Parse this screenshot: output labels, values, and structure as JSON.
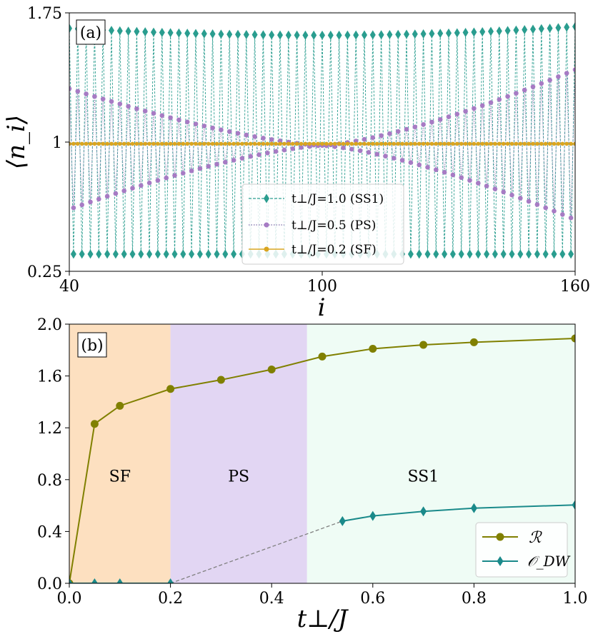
{
  "colors": {
    "ss1": "#2a9d8f",
    "ps": "#a77bc4",
    "sf": "#d9a520",
    "R": "#808000",
    "odw": "#1a8a8a",
    "dashed": "#808080",
    "region_sf": "#fde0c0",
    "region_ps": "#e2d6f3",
    "region_ss1": "#effcf5"
  },
  "chart_data": [
    {
      "id": "a",
      "type": "line",
      "panel_label": "(a)",
      "xlabel": "i",
      "ylabel": "⟨n_i⟩",
      "xlim": [
        40,
        160
      ],
      "ylim": [
        0.25,
        1.75
      ],
      "xticks": [
        40,
        100,
        160
      ],
      "xtick_labels": [
        "40",
        "100",
        "160"
      ],
      "yticks": [
        0.25,
        1,
        1.75
      ],
      "ytick_labels": [
        "0.25",
        "1",
        "1.75"
      ],
      "x_range": [
        40,
        160
      ],
      "legend_position": "lower-center",
      "series": [
        {
          "key": "ss1",
          "name": "t⊥/J=1.0 (SS1)",
          "marker": "diamond",
          "style": "dashed",
          "odd_values_start": 1.66,
          "odd_values_mid": 1.62,
          "odd_values_end": 1.67,
          "even_values": 0.35,
          "x_start": 40
        },
        {
          "key": "ps",
          "name": "t⊥/J=0.5 (PS)",
          "marker": "circle",
          "style": "dotted",
          "high_left_edge": 1.31,
          "high_right_edge": 1.42,
          "low_left_edge": 0.61,
          "low_right_edge": 0.55,
          "center_value": 0.98
        },
        {
          "key": "sf",
          "name": "t⊥/J=0.2 (SF)",
          "marker": "circle",
          "style": "solid",
          "constant": 0.99
        }
      ]
    },
    {
      "id": "b",
      "type": "line",
      "panel_label": "(b)",
      "xlabel": "t⊥/J",
      "ylabel": "",
      "xlim": [
        0.0,
        1.0
      ],
      "ylim": [
        0.0,
        2.0
      ],
      "xticks": [
        0.0,
        0.2,
        0.4,
        0.6,
        0.8,
        1.0
      ],
      "xtick_labels": [
        "0.0",
        "0.2",
        "0.4",
        "0.6",
        "0.8",
        "1.0"
      ],
      "yticks": [
        0.0,
        0.4,
        0.8,
        1.2,
        1.6,
        2.0
      ],
      "ytick_labels": [
        "0.0",
        "0.4",
        "0.8",
        "1.2",
        "1.6",
        "2.0"
      ],
      "legend_position": "lower-right",
      "regions": [
        {
          "name": "SF",
          "x0": 0.0,
          "x1": 0.2,
          "color_key": "region_sf"
        },
        {
          "name": "PS",
          "x0": 0.2,
          "x1": 0.47,
          "color_key": "region_ps"
        },
        {
          "name": "SS1",
          "x0": 0.47,
          "x1": 1.0,
          "color_key": "region_ss1"
        }
      ],
      "region_label_y": 0.83,
      "series": [
        {
          "key": "R",
          "name": "ℛ",
          "marker": "circle",
          "x": [
            0.0,
            0.05,
            0.1,
            0.2,
            0.3,
            0.4,
            0.5,
            0.6,
            0.7,
            0.8,
            1.0
          ],
          "y": [
            0.0,
            1.23,
            1.37,
            1.5,
            1.57,
            1.65,
            1.75,
            1.81,
            1.84,
            1.86,
            1.89
          ]
        },
        {
          "key": "odw",
          "name": "𝒪_DW",
          "marker": "diamond",
          "x": [
            0.0,
            0.05,
            0.1,
            0.2,
            0.54,
            0.6,
            0.7,
            0.8,
            1.0
          ],
          "y": [
            0.0,
            0.0,
            0.0,
            0.0,
            0.48,
            0.52,
            0.555,
            0.58,
            0.605
          ]
        }
      ],
      "dashed_connector": {
        "x": [
          0.2,
          0.54
        ],
        "y": [
          0.0,
          0.48
        ]
      }
    }
  ]
}
